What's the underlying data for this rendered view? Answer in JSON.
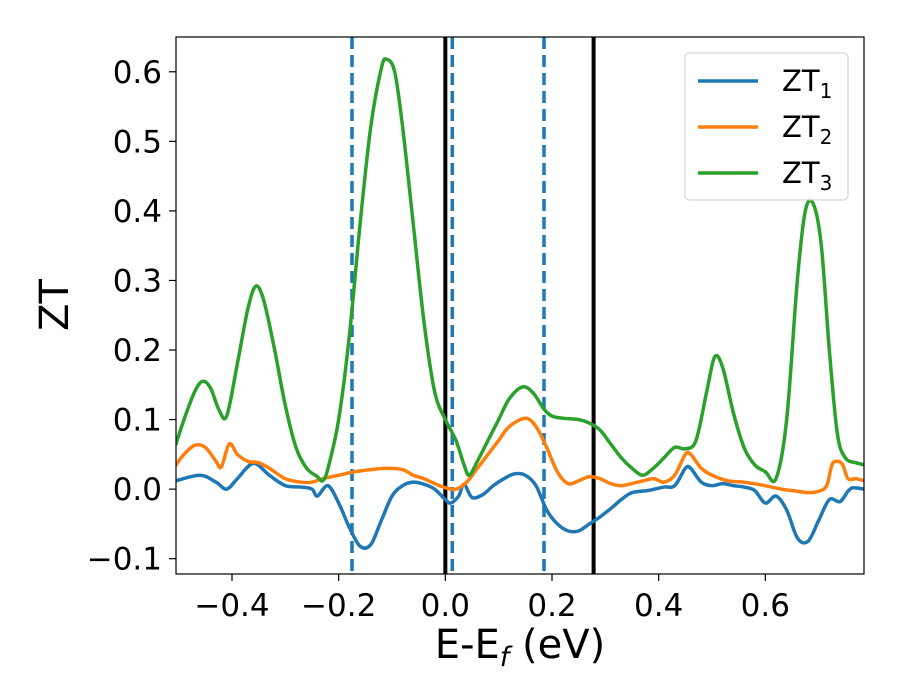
{
  "chart_data": {
    "type": "line",
    "xlabel": {
      "main": "E-E",
      "sub": "f",
      "unit": " (eV)"
    },
    "ylabel": "ZT",
    "xlim": [
      -0.505,
      0.785
    ],
    "ylim": [
      -0.122,
      0.65
    ],
    "xticks": [
      -0.4,
      -0.2,
      0.0,
      0.2,
      0.4,
      0.6
    ],
    "xtick_labels": [
      "−0.4",
      "−0.2",
      "0.0",
      "0.2",
      "0.4",
      "0.6"
    ],
    "yticks": [
      -0.1,
      0.0,
      0.1,
      0.2,
      0.3,
      0.4,
      0.5,
      0.6
    ],
    "ytick_labels": [
      "−0.1",
      "0.0",
      "0.1",
      "0.2",
      "0.3",
      "0.4",
      "0.5",
      "0.6"
    ],
    "grid": false,
    "legend_position": "top-right",
    "vlines_dashed": [
      -0.175,
      0.013,
      0.185
    ],
    "vlines_solid": [
      0.0,
      0.278
    ],
    "series": [
      {
        "name": "ZT",
        "sub": "1",
        "color": "#1f77b4",
        "points": [
          [
            -0.505,
            0.012
          ],
          [
            -0.46,
            0.02
          ],
          [
            -0.43,
            0.01
          ],
          [
            -0.41,
            0.0
          ],
          [
            -0.39,
            0.015
          ],
          [
            -0.36,
            0.037
          ],
          [
            -0.33,
            0.02
          ],
          [
            -0.3,
            0.005
          ],
          [
            -0.27,
            0.003
          ],
          [
            -0.25,
            0.0
          ],
          [
            -0.24,
            -0.01
          ],
          [
            -0.22,
            0.005
          ],
          [
            -0.2,
            -0.02
          ],
          [
            -0.18,
            -0.055
          ],
          [
            -0.16,
            -0.082
          ],
          [
            -0.14,
            -0.08
          ],
          [
            -0.12,
            -0.045
          ],
          [
            -0.1,
            -0.01
          ],
          [
            -0.08,
            0.005
          ],
          [
            -0.06,
            0.01
          ],
          [
            -0.04,
            0.007
          ],
          [
            -0.02,
            0.0
          ],
          [
            0.0,
            -0.015
          ],
          [
            0.01,
            -0.02
          ],
          [
            0.025,
            -0.01
          ],
          [
            0.035,
            0.007
          ],
          [
            0.05,
            -0.012
          ],
          [
            0.07,
            -0.008
          ],
          [
            0.09,
            0.005
          ],
          [
            0.11,
            0.015
          ],
          [
            0.13,
            0.022
          ],
          [
            0.15,
            0.02
          ],
          [
            0.17,
            0.005
          ],
          [
            0.19,
            -0.03
          ],
          [
            0.21,
            -0.05
          ],
          [
            0.23,
            -0.06
          ],
          [
            0.25,
            -0.06
          ],
          [
            0.27,
            -0.05
          ],
          [
            0.29,
            -0.04
          ],
          [
            0.31,
            -0.028
          ],
          [
            0.33,
            -0.015
          ],
          [
            0.35,
            -0.005
          ],
          [
            0.38,
            -0.002
          ],
          [
            0.41,
            0.003
          ],
          [
            0.43,
            0.005
          ],
          [
            0.45,
            0.03
          ],
          [
            0.46,
            0.03
          ],
          [
            0.48,
            0.01
          ],
          [
            0.5,
            0.005
          ],
          [
            0.52,
            0.008
          ],
          [
            0.54,
            0.005
          ],
          [
            0.56,
            0.003
          ],
          [
            0.58,
            -0.002
          ],
          [
            0.6,
            -0.02
          ],
          [
            0.62,
            -0.01
          ],
          [
            0.64,
            -0.03
          ],
          [
            0.66,
            -0.07
          ],
          [
            0.68,
            -0.075
          ],
          [
            0.7,
            -0.045
          ],
          [
            0.72,
            -0.015
          ],
          [
            0.74,
            -0.018
          ],
          [
            0.755,
            -0.003
          ],
          [
            0.765,
            0.002
          ],
          [
            0.785,
            0.0
          ]
        ]
      },
      {
        "name": "ZT",
        "sub": "2",
        "color": "#ff7f0e",
        "points": [
          [
            -0.505,
            0.035
          ],
          [
            -0.49,
            0.05
          ],
          [
            -0.47,
            0.063
          ],
          [
            -0.45,
            0.06
          ],
          [
            -0.43,
            0.04
          ],
          [
            -0.42,
            0.032
          ],
          [
            -0.405,
            0.065
          ],
          [
            -0.39,
            0.05
          ],
          [
            -0.37,
            0.04
          ],
          [
            -0.35,
            0.038
          ],
          [
            -0.33,
            0.03
          ],
          [
            -0.3,
            0.015
          ],
          [
            -0.27,
            0.01
          ],
          [
            -0.25,
            0.01
          ],
          [
            -0.23,
            0.015
          ],
          [
            -0.2,
            0.02
          ],
          [
            -0.17,
            0.025
          ],
          [
            -0.14,
            0.028
          ],
          [
            -0.11,
            0.03
          ],
          [
            -0.08,
            0.028
          ],
          [
            -0.06,
            0.02
          ],
          [
            -0.04,
            0.015
          ],
          [
            -0.02,
            0.008
          ],
          [
            0.0,
            0.002
          ],
          [
            0.02,
            0.0
          ],
          [
            0.04,
            0.01
          ],
          [
            0.06,
            0.03
          ],
          [
            0.08,
            0.05
          ],
          [
            0.1,
            0.07
          ],
          [
            0.12,
            0.09
          ],
          [
            0.15,
            0.102
          ],
          [
            0.17,
            0.09
          ],
          [
            0.19,
            0.06
          ],
          [
            0.21,
            0.025
          ],
          [
            0.23,
            0.008
          ],
          [
            0.25,
            0.012
          ],
          [
            0.27,
            0.018
          ],
          [
            0.29,
            0.015
          ],
          [
            0.31,
            0.008
          ],
          [
            0.33,
            0.005
          ],
          [
            0.36,
            0.01
          ],
          [
            0.39,
            0.015
          ],
          [
            0.41,
            0.01
          ],
          [
            0.43,
            0.02
          ],
          [
            0.45,
            0.05
          ],
          [
            0.46,
            0.05
          ],
          [
            0.48,
            0.03
          ],
          [
            0.5,
            0.02
          ],
          [
            0.53,
            0.012
          ],
          [
            0.56,
            0.01
          ],
          [
            0.6,
            0.005
          ],
          [
            0.63,
            0.0
          ],
          [
            0.66,
            -0.003
          ],
          [
            0.68,
            -0.005
          ],
          [
            0.7,
            -0.003
          ],
          [
            0.715,
            0.005
          ],
          [
            0.725,
            0.035
          ],
          [
            0.735,
            0.04
          ],
          [
            0.745,
            0.035
          ],
          [
            0.755,
            0.015
          ],
          [
            0.77,
            0.015
          ],
          [
            0.785,
            0.012
          ]
        ]
      },
      {
        "name": "ZT",
        "sub": "3",
        "color": "#2ca02c",
        "points": [
          [
            -0.505,
            0.065
          ],
          [
            -0.49,
            0.1
          ],
          [
            -0.47,
            0.14
          ],
          [
            -0.455,
            0.155
          ],
          [
            -0.44,
            0.145
          ],
          [
            -0.425,
            0.115
          ],
          [
            -0.41,
            0.105
          ],
          [
            -0.39,
            0.18
          ],
          [
            -0.37,
            0.26
          ],
          [
            -0.355,
            0.292
          ],
          [
            -0.34,
            0.27
          ],
          [
            -0.32,
            0.2
          ],
          [
            -0.3,
            0.12
          ],
          [
            -0.28,
            0.06
          ],
          [
            -0.26,
            0.03
          ],
          [
            -0.24,
            0.018
          ],
          [
            -0.23,
            0.012
          ],
          [
            -0.22,
            0.03
          ],
          [
            -0.2,
            0.1
          ],
          [
            -0.18,
            0.22
          ],
          [
            -0.16,
            0.38
          ],
          [
            -0.14,
            0.52
          ],
          [
            -0.12,
            0.605
          ],
          [
            -0.11,
            0.618
          ],
          [
            -0.095,
            0.6
          ],
          [
            -0.08,
            0.52
          ],
          [
            -0.06,
            0.38
          ],
          [
            -0.04,
            0.24
          ],
          [
            -0.02,
            0.14
          ],
          [
            0.0,
            0.1
          ],
          [
            0.02,
            0.07
          ],
          [
            0.035,
            0.035
          ],
          [
            0.045,
            0.02
          ],
          [
            0.06,
            0.04
          ],
          [
            0.08,
            0.07
          ],
          [
            0.1,
            0.1
          ],
          [
            0.12,
            0.13
          ],
          [
            0.145,
            0.147
          ],
          [
            0.165,
            0.138
          ],
          [
            0.185,
            0.115
          ],
          [
            0.2,
            0.105
          ],
          [
            0.22,
            0.102
          ],
          [
            0.25,
            0.1
          ],
          [
            0.27,
            0.095
          ],
          [
            0.29,
            0.085
          ],
          [
            0.31,
            0.065
          ],
          [
            0.33,
            0.045
          ],
          [
            0.35,
            0.03
          ],
          [
            0.37,
            0.02
          ],
          [
            0.39,
            0.03
          ],
          [
            0.41,
            0.045
          ],
          [
            0.43,
            0.06
          ],
          [
            0.45,
            0.058
          ],
          [
            0.47,
            0.07
          ],
          [
            0.49,
            0.14
          ],
          [
            0.505,
            0.19
          ],
          [
            0.52,
            0.175
          ],
          [
            0.54,
            0.11
          ],
          [
            0.56,
            0.06
          ],
          [
            0.58,
            0.035
          ],
          [
            0.6,
            0.025
          ],
          [
            0.62,
            0.015
          ],
          [
            0.64,
            0.1
          ],
          [
            0.66,
            0.3
          ],
          [
            0.675,
            0.4
          ],
          [
            0.69,
            0.41
          ],
          [
            0.705,
            0.35
          ],
          [
            0.72,
            0.2
          ],
          [
            0.735,
            0.08
          ],
          [
            0.75,
            0.045
          ],
          [
            0.77,
            0.038
          ],
          [
            0.785,
            0.035
          ]
        ]
      }
    ]
  }
}
